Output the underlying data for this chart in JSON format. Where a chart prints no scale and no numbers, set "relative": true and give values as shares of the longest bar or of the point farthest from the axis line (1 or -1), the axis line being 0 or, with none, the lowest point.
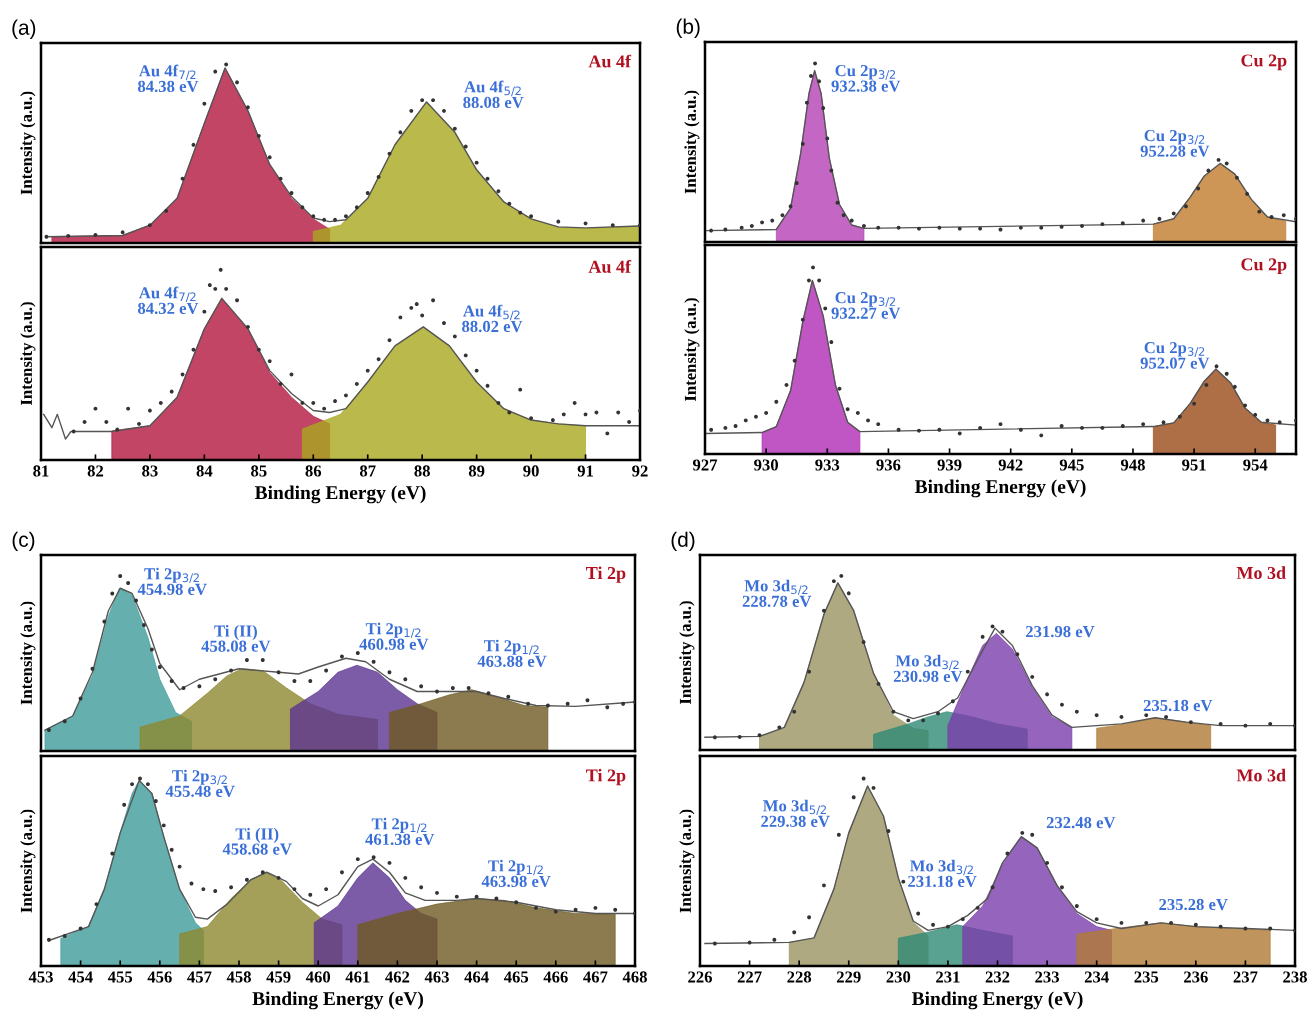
{
  "chart_data": [
    {
      "type": "area",
      "relative": true,
      "title": "(a)",
      "ylabel": "Intensity (a.u.)",
      "xlim": [
        81,
        92
      ],
      "tick_labels": false,
      "annotations": [
        "Au 4f",
        "Au 4f$_{7/2}$\n84.38 eV",
        "Au 4f$_{5/2}$\n88.08 eV"
      ],
      "series": [
        {
          "color": "#b3173f",
          "x": [
            81.2,
            82.5,
            83.0,
            83.5,
            84.0,
            84.38,
            84.8,
            85.2,
            85.6,
            86.0,
            86.3
          ],
          "values": [
            0.035,
            0.042,
            0.1,
            0.25,
            0.67,
            0.98,
            0.74,
            0.44,
            0.25,
            0.135,
            0.077
          ]
        },
        {
          "color": "#a9a81e",
          "x": [
            86.0,
            86.5,
            87.0,
            87.5,
            88.08,
            88.6,
            89.0,
            89.5,
            90.0,
            90.5,
            91.0,
            92.0
          ],
          "values": [
            0.065,
            0.1,
            0.25,
            0.55,
            0.79,
            0.62,
            0.41,
            0.23,
            0.135,
            0.088,
            0.081,
            0.095
          ]
        },
        {
          "type": "line",
          "color": "#555555",
          "x": [
            81.1,
            82.5,
            83.0,
            83.5,
            84.0,
            84.38,
            84.8,
            85.2,
            85.6,
            86.0,
            86.3,
            86.6,
            87.0,
            87.5,
            88.08,
            88.6,
            89.0,
            89.5,
            90.0,
            90.5,
            91.0,
            92.0
          ],
          "values": [
            0.035,
            0.042,
            0.1,
            0.25,
            0.67,
            0.98,
            0.74,
            0.44,
            0.26,
            0.14,
            0.12,
            0.13,
            0.25,
            0.55,
            0.79,
            0.62,
            0.41,
            0.23,
            0.135,
            0.09,
            0.085,
            0.095
          ]
        },
        {
          "type": "scatter",
          "color": "#333333",
          "marker": "circle",
          "x": [
            81.1,
            81.5,
            82.0,
            82.5,
            83.0,
            83.3,
            83.6,
            83.8,
            84.0,
            84.2,
            84.4,
            84.6,
            84.8,
            85.0,
            85.2,
            85.4,
            85.6,
            85.8,
            86.0,
            86.2,
            86.4,
            86.6,
            86.8,
            87.0,
            87.2,
            87.4,
            87.6,
            87.8,
            88.0,
            88.2,
            88.4,
            88.6,
            88.8,
            89.0,
            89.2,
            89.4,
            89.6,
            89.8,
            90.0,
            90.5,
            91.0,
            91.5,
            92.0
          ],
          "values": [
            0.035,
            0.04,
            0.045,
            0.06,
            0.1,
            0.18,
            0.36,
            0.55,
            0.78,
            0.96,
            1.0,
            0.9,
            0.76,
            0.6,
            0.48,
            0.36,
            0.28,
            0.2,
            0.15,
            0.13,
            0.13,
            0.15,
            0.2,
            0.28,
            0.37,
            0.5,
            0.62,
            0.74,
            0.8,
            0.8,
            0.74,
            0.64,
            0.54,
            0.45,
            0.36,
            0.29,
            0.22,
            0.17,
            0.15,
            0.12,
            0.11,
            0.1,
            0.1
          ]
        }
      ]
    },
    {
      "type": "area",
      "relative": true,
      "xlabel": "Binding Energy (eV)",
      "ylabel": "Intensity (a.u.)",
      "xlim": [
        81,
        92
      ],
      "xticks": [
        81,
        82,
        83,
        84,
        85,
        86,
        87,
        88,
        89,
        90,
        91,
        92
      ],
      "tick_labels": "x",
      "annotations": [
        "Au 4f",
        "Au 4f$_{7/2}$\n84.32 eV",
        "Au 4f$_{5/2}$\n88.02 eV"
      ],
      "series": [
        {
          "color": "#b3173f",
          "x": [
            82.3,
            83.0,
            83.5,
            84.0,
            84.32,
            84.8,
            85.2,
            85.6,
            86.0,
            86.3
          ],
          "values": [
            0.153,
            0.18,
            0.33,
            0.69,
            0.85,
            0.69,
            0.46,
            0.33,
            0.23,
            0.19
          ]
        },
        {
          "color": "#a9a81e",
          "x": [
            85.8,
            86.5,
            87.0,
            87.5,
            88.02,
            88.5,
            89.0,
            89.5,
            90.0,
            90.5,
            91.0
          ],
          "values": [
            0.163,
            0.24,
            0.41,
            0.6,
            0.7,
            0.6,
            0.41,
            0.27,
            0.21,
            0.19,
            0.18
          ]
        },
        {
          "type": "line",
          "color": "#555555",
          "x": [
            81.05,
            81.2,
            81.3,
            81.45,
            81.55,
            82.3,
            83.0,
            83.5,
            84.0,
            84.32,
            84.8,
            85.2,
            85.6,
            86.0,
            86.3,
            86.6,
            87.0,
            87.5,
            88.02,
            88.5,
            89.0,
            89.5,
            90.0,
            90.5,
            91.0,
            92.0
          ],
          "values": [
            0.24,
            0.17,
            0.24,
            0.11,
            0.15,
            0.15,
            0.18,
            0.33,
            0.69,
            0.85,
            0.69,
            0.47,
            0.35,
            0.26,
            0.25,
            0.27,
            0.41,
            0.6,
            0.7,
            0.6,
            0.41,
            0.27,
            0.21,
            0.19,
            0.18,
            0.18
          ]
        },
        {
          "type": "scatter",
          "color": "#333333",
          "marker": "circle",
          "x": [
            81.6,
            81.8,
            82.0,
            82.2,
            82.4,
            82.6,
            82.8,
            83.0,
            83.2,
            83.4,
            83.6,
            83.8,
            84.0,
            84.1,
            84.2,
            84.3,
            84.4,
            84.6,
            84.8,
            85.0,
            85.2,
            85.4,
            85.6,
            85.8,
            86.0,
            86.2,
            86.4,
            86.6,
            86.8,
            87.0,
            87.2,
            87.4,
            87.6,
            87.8,
            87.9,
            88.0,
            88.2,
            88.4,
            88.6,
            88.8,
            89.0,
            89.2,
            89.4,
            89.6,
            89.8,
            90.0,
            90.4,
            90.6,
            90.8,
            91.0,
            91.2,
            91.4,
            91.6,
            91.8,
            92.0
          ],
          "values": [
            0.15,
            0.2,
            0.27,
            0.2,
            0.16,
            0.27,
            0.19,
            0.26,
            0.3,
            0.36,
            0.45,
            0.58,
            0.78,
            0.92,
            0.9,
            1.0,
            0.9,
            0.84,
            0.7,
            0.58,
            0.52,
            0.4,
            0.45,
            0.3,
            0.3,
            0.27,
            0.31,
            0.34,
            0.4,
            0.47,
            0.53,
            0.63,
            0.75,
            0.8,
            0.82,
            0.76,
            0.84,
            0.72,
            0.65,
            0.55,
            0.47,
            0.39,
            0.3,
            0.25,
            0.37,
            0.22,
            0.21,
            0.24,
            0.3,
            0.24,
            0.25,
            0.14,
            0.25,
            0.2,
            0.26
          ]
        }
      ]
    },
    {
      "type": "area",
      "relative": true,
      "title": "(b)",
      "ylabel": "Intensity (a.u.)",
      "xlim": [
        927,
        956
      ],
      "tick_labels": false,
      "annotations": [
        "Cu 2p",
        "Cu 2p$_{3/2}$\n932.38 eV",
        "Cu 2p$_{3/2}$\n952.28 eV"
      ],
      "series": [
        {
          "color": "#b540b5",
          "x": [
            930.5,
            931.2,
            931.7,
            932.1,
            932.38,
            932.7,
            933.1,
            933.6,
            934.2,
            934.8
          ],
          "values": [
            0.07,
            0.19,
            0.5,
            0.83,
            0.96,
            0.83,
            0.47,
            0.21,
            0.095,
            0.076
          ]
        },
        {
          "color": "#c07a2c",
          "x": [
            949.0,
            950.0,
            950.8,
            951.5,
            952.28,
            953.0,
            953.8,
            954.6,
            955.5
          ],
          "values": [
            0.1,
            0.13,
            0.25,
            0.37,
            0.44,
            0.38,
            0.24,
            0.14,
            0.116
          ]
        },
        {
          "type": "line",
          "color": "#555555",
          "x": [
            927.0,
            930.5,
            931.2,
            931.7,
            932.1,
            932.38,
            932.7,
            933.1,
            933.6,
            934.2,
            934.8,
            949.0,
            950.0,
            950.8,
            951.5,
            952.28,
            953.0,
            953.8,
            954.6,
            956.0
          ],
          "values": [
            0.064,
            0.07,
            0.19,
            0.5,
            0.83,
            0.96,
            0.83,
            0.47,
            0.21,
            0.095,
            0.076,
            0.1,
            0.13,
            0.25,
            0.37,
            0.44,
            0.38,
            0.24,
            0.14,
            0.113
          ]
        },
        {
          "type": "scatter",
          "color": "#333333",
          "marker": "circle",
          "x": [
            927.3,
            928.0,
            928.8,
            929.3,
            929.8,
            930.3,
            930.8,
            931.2,
            931.5,
            931.8,
            932.0,
            932.2,
            932.4,
            932.6,
            932.8,
            933.0,
            933.2,
            933.5,
            933.8,
            934.2,
            934.8,
            935.5,
            936.5,
            937.5,
            938.5,
            939.5,
            940.5,
            941.5,
            942.5,
            943.5,
            944.5,
            945.5,
            946.5,
            947.5,
            948.5,
            949.3,
            950.0,
            950.6,
            951.2,
            951.7,
            952.2,
            952.6,
            953.1,
            953.6,
            954.2,
            954.8,
            955.4,
            956.0
          ],
          "values": [
            0.064,
            0.07,
            0.08,
            0.09,
            0.11,
            0.12,
            0.15,
            0.2,
            0.33,
            0.55,
            0.78,
            0.93,
            1.0,
            0.9,
            0.75,
            0.58,
            0.4,
            0.22,
            0.15,
            0.12,
            0.09,
            0.08,
            0.08,
            0.075,
            0.08,
            0.075,
            0.075,
            0.07,
            0.08,
            0.08,
            0.085,
            0.09,
            0.1,
            0.105,
            0.12,
            0.13,
            0.16,
            0.2,
            0.3,
            0.4,
            0.46,
            0.44,
            0.36,
            0.27,
            0.17,
            0.14,
            0.15,
            0.13
          ]
        }
      ]
    },
    {
      "type": "area",
      "relative": true,
      "xlabel": "Binding Energy (eV)",
      "ylabel": "Intensity (a.u.)",
      "xlim": [
        927,
        956
      ],
      "xticks": [
        927,
        930,
        933,
        936,
        939,
        942,
        945,
        948,
        951,
        954
      ],
      "tick_labels": "x",
      "annotations": [
        "Cu 2p",
        "Cu 2p$_{3/2}$\n932.27 eV",
        "Cu 2p$_{3/2}$\n952.07 eV"
      ],
      "series": [
        {
          "color": "#b02ab5",
          "x": [
            929.8,
            930.5,
            931.2,
            931.8,
            932.27,
            932.8,
            933.4,
            934.0,
            934.6
          ],
          "values": [
            0.115,
            0.147,
            0.34,
            0.71,
            0.93,
            0.74,
            0.37,
            0.17,
            0.12
          ]
        },
        {
          "color": "#9a4a18",
          "x": [
            949.0,
            950.0,
            950.8,
            951.5,
            952.07,
            952.8,
            953.5,
            954.3,
            955.0
          ],
          "values": [
            0.147,
            0.167,
            0.27,
            0.39,
            0.455,
            0.38,
            0.246,
            0.17,
            0.155
          ]
        },
        {
          "type": "line",
          "color": "#555555",
          "x": [
            927.0,
            929.8,
            930.5,
            931.2,
            931.8,
            932.27,
            932.8,
            933.4,
            934.0,
            934.6,
            949.0,
            950.0,
            950.8,
            951.5,
            952.07,
            952.8,
            953.5,
            954.3,
            956.0
          ],
          "values": [
            0.11,
            0.115,
            0.147,
            0.34,
            0.71,
            0.93,
            0.74,
            0.37,
            0.17,
            0.12,
            0.147,
            0.167,
            0.27,
            0.39,
            0.455,
            0.38,
            0.246,
            0.17,
            0.155
          ]
        },
        {
          "type": "scatter",
          "color": "#333333",
          "marker": "circle",
          "x": [
            927.3,
            928.0,
            928.5,
            929.0,
            929.5,
            930.0,
            930.5,
            931.0,
            931.4,
            931.8,
            932.1,
            932.3,
            932.6,
            932.9,
            933.2,
            933.6,
            934.0,
            934.5,
            935.0,
            935.5,
            936.5,
            937.5,
            938.5,
            939.5,
            940.5,
            941.5,
            942.5,
            943.5,
            944.5,
            945.5,
            946.5,
            947.5,
            948.5,
            949.5,
            950.3,
            951.0,
            951.6,
            952.1,
            952.6,
            953.0,
            953.5,
            954.0,
            954.6,
            955.2,
            956.0
          ],
          "values": [
            0.13,
            0.14,
            0.15,
            0.18,
            0.2,
            0.22,
            0.28,
            0.37,
            0.5,
            0.72,
            0.93,
            1.0,
            0.93,
            0.78,
            0.6,
            0.35,
            0.24,
            0.22,
            0.18,
            0.16,
            0.13,
            0.125,
            0.13,
            0.11,
            0.14,
            0.16,
            0.13,
            0.1,
            0.15,
            0.14,
            0.14,
            0.15,
            0.16,
            0.17,
            0.2,
            0.27,
            0.37,
            0.47,
            0.43,
            0.36,
            0.26,
            0.21,
            0.18,
            0.17,
            0.18
          ]
        }
      ]
    },
    {
      "type": "area",
      "relative": true,
      "title": "(c)",
      "ylabel": "Intensity (a.u.)",
      "xlim": [
        453,
        468
      ],
      "tick_labels": false,
      "annotations": [
        "Ti 2p",
        "Ti 2p$_{3/2}$\n454.98 eV",
        "Ti (II)\n458.08 eV",
        "Ti 2p$_{1/2}$\n460.98 eV",
        "Ti 2p$_{1/2}$\n463.88 eV"
      ],
      "series": [
        {
          "color": "#3f9c9a",
          "x": [
            453.1,
            453.8,
            454.3,
            454.7,
            454.98,
            455.3,
            455.7,
            456.0,
            456.4,
            456.8
          ],
          "values": [
            0.12,
            0.2,
            0.43,
            0.77,
            0.93,
            0.89,
            0.65,
            0.41,
            0.22,
            0.17
          ]
        },
        {
          "color": "#8d8830",
          "x": [
            455.5,
            456.5,
            457.2,
            457.7,
            458.08,
            458.6,
            459.2,
            459.8,
            460.5,
            461.5
          ],
          "values": [
            0.136,
            0.2,
            0.33,
            0.43,
            0.47,
            0.46,
            0.36,
            0.27,
            0.21,
            0.18
          ]
        },
        {
          "color": "#5b3390",
          "x": [
            459.3,
            460.0,
            460.5,
            460.98,
            461.5,
            462.0,
            462.5,
            463.0
          ],
          "values": [
            0.24,
            0.34,
            0.45,
            0.49,
            0.45,
            0.35,
            0.27,
            0.22
          ]
        },
        {
          "color": "#6e5a22",
          "x": [
            461.8,
            462.6,
            463.3,
            463.88,
            464.5,
            465.2,
            465.8
          ],
          "values": [
            0.22,
            0.27,
            0.32,
            0.35,
            0.31,
            0.26,
            0.25
          ]
        },
        {
          "type": "line",
          "color": "#555555",
          "x": [
            453.1,
            453.8,
            454.3,
            454.7,
            455.0,
            455.3,
            455.7,
            456.0,
            456.5,
            457.0,
            458.0,
            459.0,
            459.5,
            460.0,
            460.7,
            461.2,
            461.8,
            462.5,
            463.3,
            464.0,
            464.7,
            465.5,
            466.5,
            468.0
          ],
          "values": [
            0.12,
            0.2,
            0.45,
            0.8,
            0.93,
            0.9,
            0.7,
            0.5,
            0.35,
            0.41,
            0.47,
            0.45,
            0.44,
            0.48,
            0.53,
            0.51,
            0.41,
            0.34,
            0.34,
            0.34,
            0.3,
            0.26,
            0.255,
            0.28
          ]
        },
        {
          "type": "scatter",
          "color": "#333333",
          "marker": "circle",
          "x": [
            453.2,
            453.6,
            454.0,
            454.3,
            454.6,
            454.8,
            455.0,
            455.2,
            455.4,
            455.6,
            455.8,
            456.0,
            456.3,
            456.6,
            457.0,
            457.4,
            457.8,
            458.2,
            458.6,
            459.0,
            459.4,
            459.8,
            460.2,
            460.6,
            461.0,
            461.4,
            461.8,
            462.2,
            462.6,
            463.0,
            463.4,
            463.8,
            464.3,
            464.8,
            465.3,
            465.8,
            466.3,
            466.8,
            467.3,
            467.7,
            468.0
          ],
          "values": [
            0.12,
            0.17,
            0.3,
            0.47,
            0.74,
            0.9,
            1.0,
            0.96,
            0.86,
            0.72,
            0.58,
            0.48,
            0.4,
            0.36,
            0.37,
            0.41,
            0.46,
            0.52,
            0.52,
            0.45,
            0.4,
            0.4,
            0.46,
            0.54,
            0.56,
            0.51,
            0.45,
            0.41,
            0.37,
            0.34,
            0.36,
            0.36,
            0.33,
            0.31,
            0.27,
            0.26,
            0.27,
            0.29,
            0.25,
            0.27,
            0.28
          ]
        }
      ]
    },
    {
      "type": "area",
      "relative": true,
      "xlabel": "Binding Energy (eV)",
      "ylabel": "Intensity (a.u.)",
      "xlim": [
        453,
        468
      ],
      "xticks": [
        453,
        454,
        455,
        456,
        457,
        458,
        459,
        460,
        461,
        462,
        463,
        464,
        465,
        466,
        467,
        468
      ],
      "tick_labels": "x",
      "annotations": [
        "Ti 2p",
        "Ti 2p$_{3/2}$\n455.48 eV",
        "Ti (II)\n458.68 eV",
        "Ti 2p$_{1/2}$\n461.38 eV",
        "Ti 2p$_{1/2}$\n463.98 eV"
      ],
      "series": [
        {
          "color": "#3f9c9a",
          "x": [
            453.5,
            454.2,
            454.6,
            455.0,
            455.3,
            455.48,
            455.8,
            456.1,
            456.5,
            456.9,
            457.1
          ],
          "values": [
            0.147,
            0.21,
            0.41,
            0.71,
            0.92,
            0.99,
            0.92,
            0.69,
            0.41,
            0.23,
            0.19
          ]
        },
        {
          "color": "#8d8830",
          "x": [
            456.5,
            457.2,
            457.8,
            458.3,
            458.68,
            459.1,
            459.6,
            460.1,
            460.6
          ],
          "values": [
            0.17,
            0.21,
            0.36,
            0.46,
            0.5,
            0.45,
            0.34,
            0.25,
            0.22
          ]
        },
        {
          "color": "#5b3390",
          "x": [
            459.9,
            460.5,
            461.0,
            461.38,
            461.8,
            462.2,
            462.6,
            463.0
          ],
          "values": [
            0.23,
            0.32,
            0.47,
            0.55,
            0.47,
            0.35,
            0.28,
            0.25
          ]
        },
        {
          "color": "#6e5a22",
          "x": [
            461.0,
            462.0,
            463.0,
            464.0,
            464.7,
            465.5,
            466.5,
            467.5
          ],
          "values": [
            0.22,
            0.28,
            0.33,
            0.36,
            0.35,
            0.31,
            0.28,
            0.276
          ]
        },
        {
          "type": "line",
          "color": "#555555",
          "x": [
            453.2,
            454.2,
            454.6,
            455.0,
            455.48,
            455.8,
            456.1,
            456.5,
            456.9,
            457.2,
            457.7,
            458.3,
            458.7,
            459.2,
            459.6,
            460.0,
            460.5,
            461.0,
            461.38,
            461.8,
            462.2,
            462.7,
            463.5,
            464.0,
            465.0,
            466.0,
            467.0,
            468.0
          ],
          "values": [
            0.136,
            0.21,
            0.41,
            0.71,
            0.99,
            0.92,
            0.69,
            0.41,
            0.26,
            0.25,
            0.33,
            0.46,
            0.5,
            0.45,
            0.36,
            0.32,
            0.38,
            0.53,
            0.57,
            0.5,
            0.39,
            0.35,
            0.35,
            0.36,
            0.34,
            0.3,
            0.28,
            0.28
          ]
        },
        {
          "type": "scatter",
          "color": "#333333",
          "marker": "circle",
          "x": [
            453.2,
            453.6,
            454.0,
            454.4,
            454.8,
            455.1,
            455.3,
            455.5,
            455.7,
            455.9,
            456.1,
            456.3,
            456.5,
            456.8,
            457.1,
            457.4,
            457.8,
            458.2,
            458.6,
            459.0,
            459.4,
            459.8,
            460.2,
            460.6,
            461.0,
            461.4,
            461.8,
            462.2,
            462.6,
            463.0,
            463.5,
            464.0,
            464.5,
            465.0,
            465.5,
            466.0,
            466.5,
            467.0,
            467.5,
            468.0
          ],
          "values": [
            0.14,
            0.16,
            0.2,
            0.33,
            0.6,
            0.86,
            0.97,
            1.0,
            0.97,
            0.88,
            0.75,
            0.62,
            0.53,
            0.44,
            0.41,
            0.4,
            0.42,
            0.46,
            0.5,
            0.47,
            0.41,
            0.38,
            0.41,
            0.5,
            0.57,
            0.58,
            0.55,
            0.47,
            0.42,
            0.39,
            0.37,
            0.37,
            0.36,
            0.34,
            0.31,
            0.29,
            0.3,
            0.31,
            0.3,
            0.28
          ]
        }
      ]
    },
    {
      "type": "area",
      "relative": true,
      "title": "(d)",
      "ylabel": "Intensity (a.u.)",
      "xlim": [
        226,
        238
      ],
      "tick_labels": false,
      "annotations": [
        "Mo 3d",
        "Mo 3d$_{5/2}$\n228.78 eV",
        "Mo 3d$_{3/2}$\n230.98 eV",
        "231.98 eV",
        "235.18 eV"
      ],
      "series": [
        {
          "color": "#9a9462",
          "x": [
            227.2,
            227.7,
            228.1,
            228.5,
            228.78,
            229.1,
            229.5,
            229.9,
            230.3,
            230.6
          ],
          "values": [
            0.078,
            0.125,
            0.39,
            0.78,
            0.96,
            0.8,
            0.44,
            0.2,
            0.125,
            0.11
          ]
        },
        {
          "color": "#2f8a76",
          "x": [
            229.5,
            230.2,
            230.6,
            230.98,
            231.5,
            232.0,
            232.6
          ],
          "values": [
            0.09,
            0.15,
            0.19,
            0.22,
            0.19,
            0.15,
            0.12
          ]
        },
        {
          "color": "#7b3dab",
          "x": [
            231.0,
            231.4,
            231.7,
            231.98,
            232.3,
            232.7,
            233.1,
            233.5
          ],
          "values": [
            0.14,
            0.41,
            0.6,
            0.67,
            0.58,
            0.36,
            0.19,
            0.13
          ]
        },
        {
          "color": "#b07a35",
          "x": [
            234.0,
            234.6,
            235.18,
            235.7,
            236.3
          ],
          "values": [
            0.125,
            0.15,
            0.185,
            0.165,
            0.14
          ]
        },
        {
          "type": "line",
          "color": "#555555",
          "x": [
            226.1,
            227.2,
            227.7,
            228.1,
            228.5,
            228.78,
            229.1,
            229.5,
            229.9,
            230.3,
            230.8,
            231.2,
            231.6,
            231.95,
            232.3,
            232.7,
            233.1,
            233.5,
            234.5,
            235.18,
            235.8,
            236.5,
            238.0
          ],
          "values": [
            0.073,
            0.078,
            0.13,
            0.39,
            0.78,
            0.96,
            0.8,
            0.44,
            0.22,
            0.18,
            0.22,
            0.3,
            0.52,
            0.7,
            0.6,
            0.37,
            0.2,
            0.13,
            0.15,
            0.185,
            0.16,
            0.14,
            0.14
          ]
        },
        {
          "type": "scatter",
          "color": "#333333",
          "marker": "circle",
          "x": [
            226.3,
            226.8,
            227.2,
            227.6,
            227.9,
            228.2,
            228.5,
            228.7,
            228.85,
            229.0,
            229.3,
            229.6,
            229.9,
            230.2,
            230.5,
            230.8,
            231.1,
            231.4,
            231.7,
            231.9,
            232.1,
            232.4,
            232.7,
            233.0,
            233.3,
            233.6,
            234.0,
            234.5,
            235.0,
            235.4,
            235.9,
            236.5,
            237.0,
            237.5,
            238.0
          ],
          "values": [
            0.073,
            0.075,
            0.085,
            0.13,
            0.22,
            0.45,
            0.8,
            0.97,
            1.0,
            0.9,
            0.62,
            0.38,
            0.22,
            0.17,
            0.17,
            0.21,
            0.28,
            0.45,
            0.65,
            0.71,
            0.68,
            0.55,
            0.42,
            0.32,
            0.26,
            0.22,
            0.2,
            0.19,
            0.2,
            0.19,
            0.16,
            0.15,
            0.14,
            0.15,
            0.14
          ]
        }
      ]
    },
    {
      "type": "area",
      "relative": true,
      "xlabel": "Binding Energy (eV)",
      "ylabel": "Intensity (a.u.)",
      "xlim": [
        226,
        238
      ],
      "xticks": [
        226,
        227,
        228,
        229,
        230,
        231,
        232,
        233,
        234,
        235,
        236,
        237,
        238
      ],
      "tick_labels": "x",
      "annotations": [
        "Mo 3d",
        "Mo 3d$_{5/2}$\n229.38 eV",
        "Mo 3d$_{3/2}$\n231.18 eV",
        "232.48 eV",
        "235.28 eV"
      ],
      "series": [
        {
          "color": "#9a9462",
          "x": [
            227.8,
            228.3,
            228.7,
            229.0,
            229.38,
            229.7,
            230.0,
            230.3,
            230.6
          ],
          "values": [
            0.126,
            0.148,
            0.41,
            0.71,
            0.96,
            0.8,
            0.47,
            0.235,
            0.16
          ]
        },
        {
          "color": "#2f8a76",
          "x": [
            230.0,
            230.6,
            231.18,
            231.7,
            232.3
          ],
          "values": [
            0.148,
            0.18,
            0.22,
            0.19,
            0.16
          ]
        },
        {
          "color": "#7b3dab",
          "x": [
            231.3,
            231.7,
            232.1,
            232.48,
            232.8,
            233.2,
            233.6,
            234.0,
            234.3
          ],
          "values": [
            0.21,
            0.32,
            0.54,
            0.69,
            0.63,
            0.43,
            0.28,
            0.21,
            0.19
          ]
        },
        {
          "color": "#b07a35",
          "x": [
            233.6,
            234.4,
            235.28,
            236.0,
            236.8,
            237.5
          ],
          "values": [
            0.17,
            0.2,
            0.23,
            0.21,
            0.2,
            0.19
          ]
        },
        {
          "type": "line",
          "color": "#555555",
          "x": [
            226.1,
            227.8,
            228.3,
            228.7,
            229.0,
            229.38,
            229.7,
            230.0,
            230.3,
            230.6,
            231.0,
            231.4,
            231.8,
            232.1,
            232.48,
            232.8,
            233.2,
            233.6,
            234.0,
            234.5,
            235.3,
            236.0,
            237.0,
            238.0
          ],
          "values": [
            0.12,
            0.126,
            0.15,
            0.41,
            0.71,
            0.96,
            0.8,
            0.47,
            0.24,
            0.19,
            0.21,
            0.27,
            0.36,
            0.55,
            0.69,
            0.63,
            0.43,
            0.29,
            0.23,
            0.2,
            0.23,
            0.21,
            0.2,
            0.19
          ]
        },
        {
          "type": "scatter",
          "color": "#333333",
          "marker": "circle",
          "x": [
            226.3,
            227.0,
            227.5,
            227.9,
            228.2,
            228.5,
            228.8,
            229.1,
            229.3,
            229.5,
            229.8,
            230.1,
            230.4,
            230.7,
            231.0,
            231.3,
            231.6,
            231.9,
            232.2,
            232.5,
            232.7,
            233.0,
            233.3,
            233.6,
            234.0,
            234.5,
            235.0,
            235.5,
            236.0,
            236.5,
            237.0,
            237.5,
            238.0
          ],
          "values": [
            0.12,
            0.125,
            0.14,
            0.18,
            0.26,
            0.43,
            0.7,
            0.9,
            1.0,
            0.95,
            0.72,
            0.45,
            0.28,
            0.22,
            0.21,
            0.25,
            0.31,
            0.42,
            0.6,
            0.71,
            0.7,
            0.55,
            0.42,
            0.32,
            0.25,
            0.23,
            0.23,
            0.23,
            0.22,
            0.21,
            0.2,
            0.2,
            0.19
          ]
        }
      ]
    }
  ]
}
